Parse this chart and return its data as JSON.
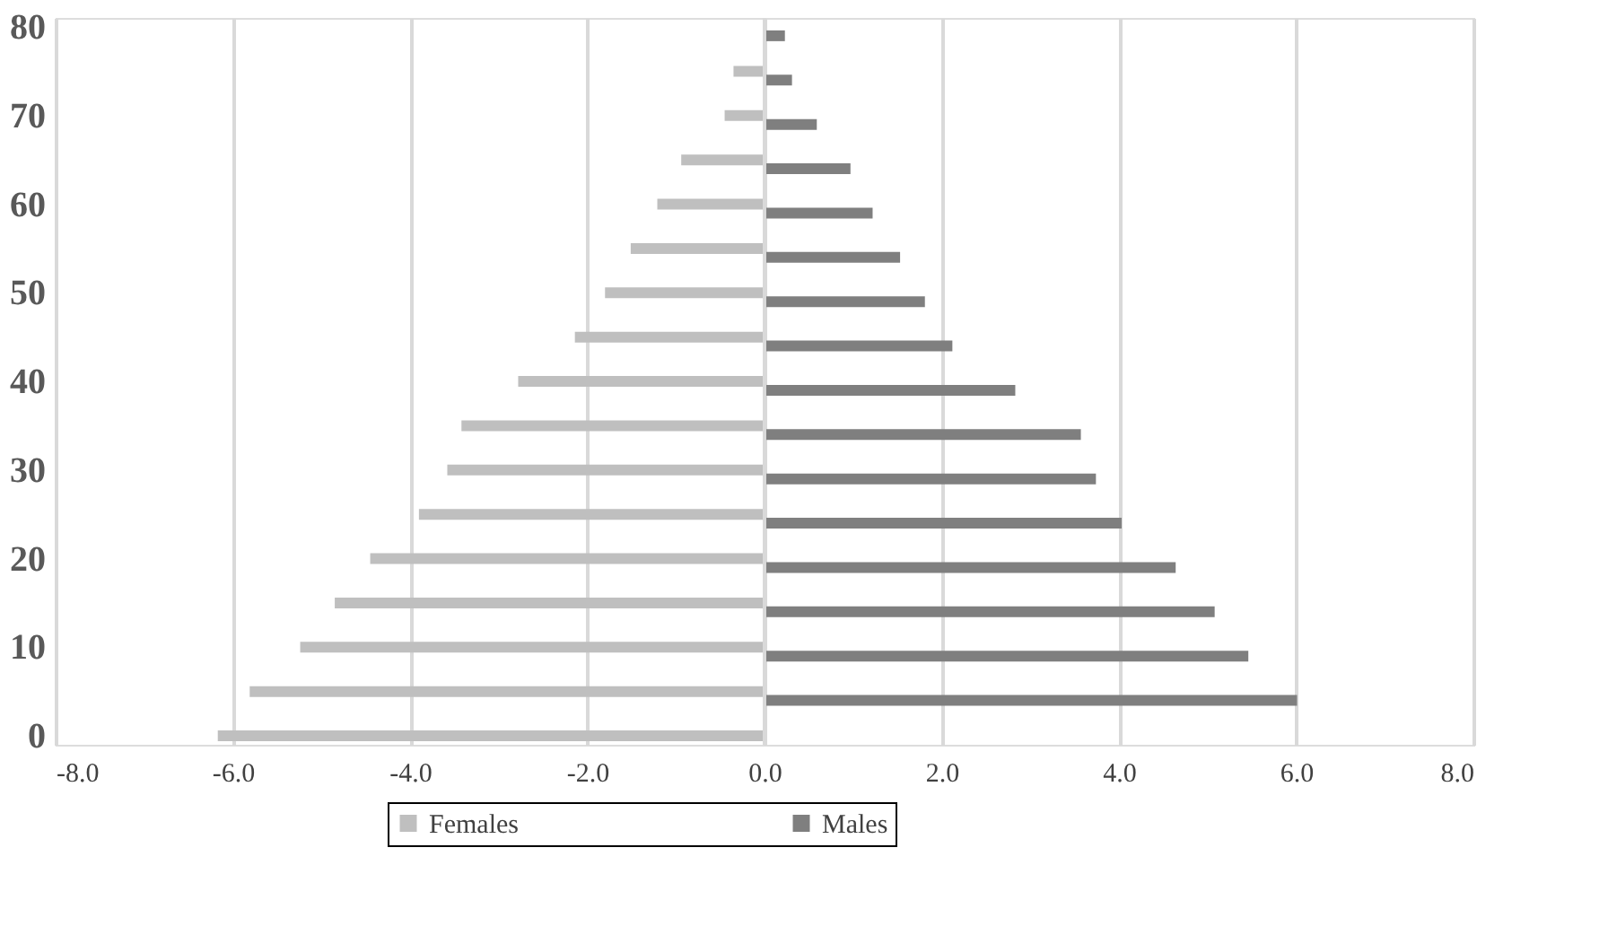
{
  "chart_data": {
    "type": "bar",
    "orientation": "horizontal",
    "series": [
      {
        "name": "Females",
        "color": "#bfbfbf",
        "x": [
          0,
          5,
          10,
          15,
          20,
          25,
          30,
          35,
          40,
          45,
          50,
          55,
          60,
          65,
          70,
          75
        ],
        "values": [
          -6.17,
          -5.81,
          -5.24,
          -4.85,
          -4.45,
          -3.9,
          -3.58,
          -3.42,
          -2.78,
          -2.14,
          -1.8,
          -1.51,
          -1.21,
          -0.94,
          -0.45,
          -0.35
        ]
      },
      {
        "name": "Males",
        "color": "#7f7f7f",
        "x": [
          4,
          9,
          14,
          19,
          24,
          29,
          34,
          39,
          44,
          49,
          54,
          59,
          64,
          69,
          74,
          79
        ],
        "values": [
          6.01,
          5.46,
          5.08,
          4.64,
          4.03,
          3.74,
          3.57,
          2.83,
          2.12,
          1.81,
          1.53,
          1.22,
          0.97,
          0.59,
          0.31,
          0.23
        ]
      }
    ],
    "xlim": [
      -8,
      8
    ],
    "xticks": [
      {
        "value": -8,
        "label": "-8.0"
      },
      {
        "value": -6,
        "label": "-6.0"
      },
      {
        "value": -4,
        "label": "-4.0"
      },
      {
        "value": -2,
        "label": "-2.0"
      },
      {
        "value": 0,
        "label": "0.0"
      },
      {
        "value": 2,
        "label": "2.0"
      },
      {
        "value": 4,
        "label": "4.0"
      },
      {
        "value": 6,
        "label": "6.0"
      },
      {
        "value": 8,
        "label": "8.0"
      }
    ],
    "ylim": [
      0,
      80
    ],
    "yticks": [
      0,
      10,
      20,
      30,
      40,
      50,
      60,
      70,
      80
    ],
    "grid": "x",
    "legend": "bottom"
  }
}
